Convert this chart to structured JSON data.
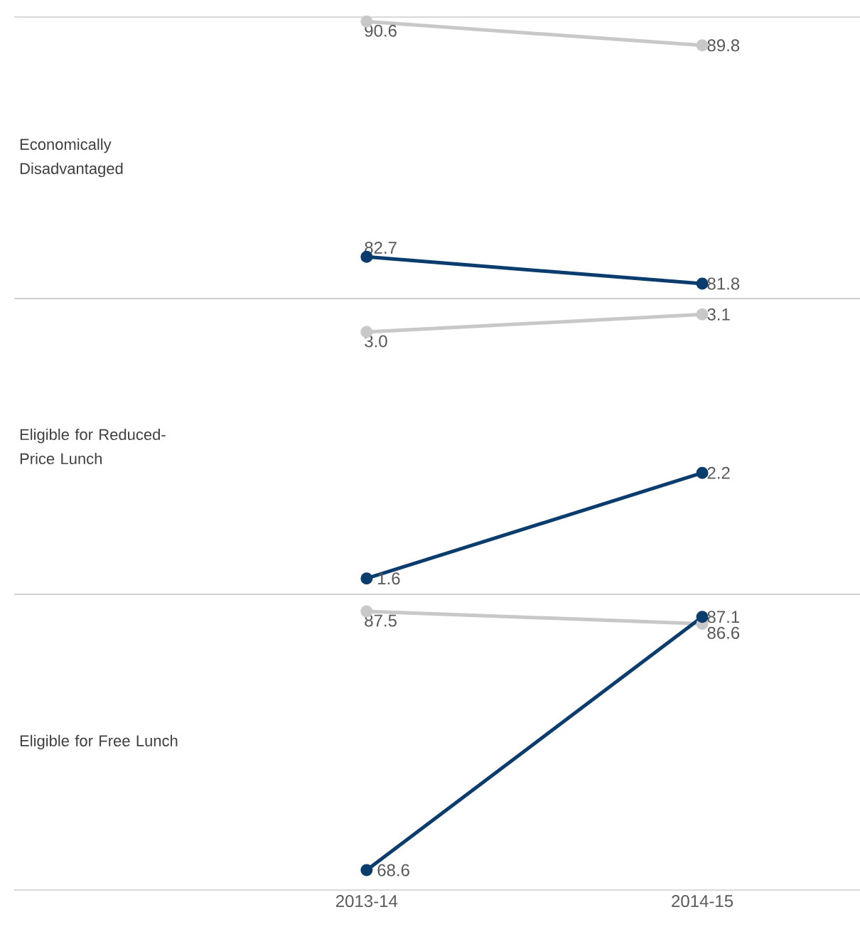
{
  "chart_data": [
    {
      "type": "line",
      "title": "Economically Disadvantaged",
      "categories": [
        "2013-14",
        "2014-15"
      ],
      "ylim": [
        81.3,
        90.75
      ],
      "tick_labels": false,
      "marker": "circle",
      "series": [
        {
          "color": "#c8c8c8",
          "values": [
            90.6,
            89.8
          ],
          "value_labels": [
            "90.6",
            "89.8"
          ]
        },
        {
          "color": "#0b3c6e",
          "values": [
            82.7,
            81.8
          ],
          "value_labels": [
            "82.7",
            "81.8"
          ]
        }
      ]
    },
    {
      "type": "line",
      "title": "Eligible for Reduced-Price Lunch",
      "categories": [
        "2013-14",
        "2014-15"
      ],
      "ylim": [
        1.51,
        3.19
      ],
      "tick_labels": false,
      "marker": "circle",
      "series": [
        {
          "color": "#c8c8c8",
          "values": [
            3.0,
            3.1
          ],
          "value_labels": [
            "3.0",
            "3.1"
          ]
        },
        {
          "color": "#0b3c6e",
          "values": [
            1.6,
            2.2
          ],
          "value_labels": [
            "1.6",
            "2.2"
          ]
        }
      ]
    },
    {
      "type": "line",
      "title": "Eligible for Free Lunch",
      "categories": [
        "2013-14",
        "2014-15"
      ],
      "ylim": [
        67.15,
        88.75
      ],
      "tick_labels": "x",
      "marker": "circle",
      "series": [
        {
          "color": "#c8c8c8",
          "values": [
            87.5,
            86.6
          ],
          "value_labels": [
            "87.5",
            "86.6"
          ]
        },
        {
          "color": "#0b3c6e",
          "values": [
            68.6,
            87.1
          ],
          "value_labels": [
            "68.6",
            "87.1"
          ]
        }
      ]
    }
  ]
}
